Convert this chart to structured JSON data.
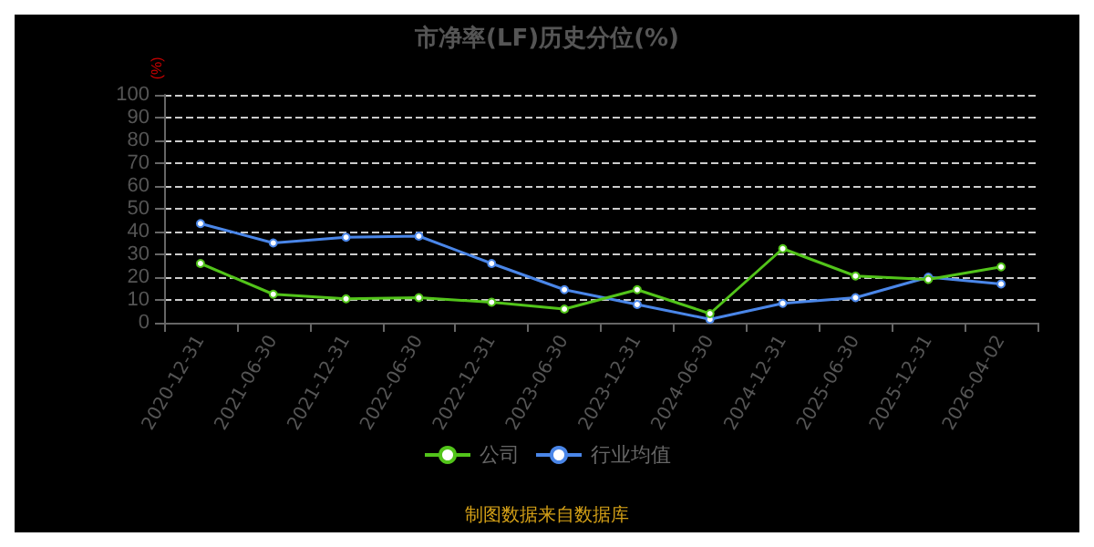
{
  "chart_data": {
    "type": "line",
    "title": "市净率(LF)历史分位(%)",
    "ylabel": "(%)",
    "categories": [
      "2020-12-31",
      "2021-06-30",
      "2021-12-31",
      "2022-06-30",
      "2022-12-31",
      "2023-06-30",
      "2023-12-31",
      "2024-06-30",
      "2024-12-31",
      "2025-06-30",
      "2025-12-31",
      "2026-04-02"
    ],
    "series": [
      {
        "name": "公司",
        "color": "#52c41a",
        "values": [
          26,
          12.5,
          10.5,
          11,
          9,
          6,
          14.5,
          4,
          32.5,
          20.5,
          19,
          24.5
        ]
      },
      {
        "name": "行业均值",
        "color": "#4a86e8",
        "values": [
          43.5,
          35,
          37.5,
          38,
          26,
          14.5,
          8,
          1.5,
          8.5,
          11,
          20,
          17
        ]
      }
    ],
    "ylim": [
      0,
      100
    ],
    "yticks": [
      0,
      10,
      20,
      30,
      40,
      50,
      60,
      70,
      80,
      90,
      100
    ],
    "grid": "y",
    "legend": "bottom",
    "marker": "circle",
    "line_style": "solid",
    "annotations": [
      "制图数据来自数据库"
    ]
  }
}
